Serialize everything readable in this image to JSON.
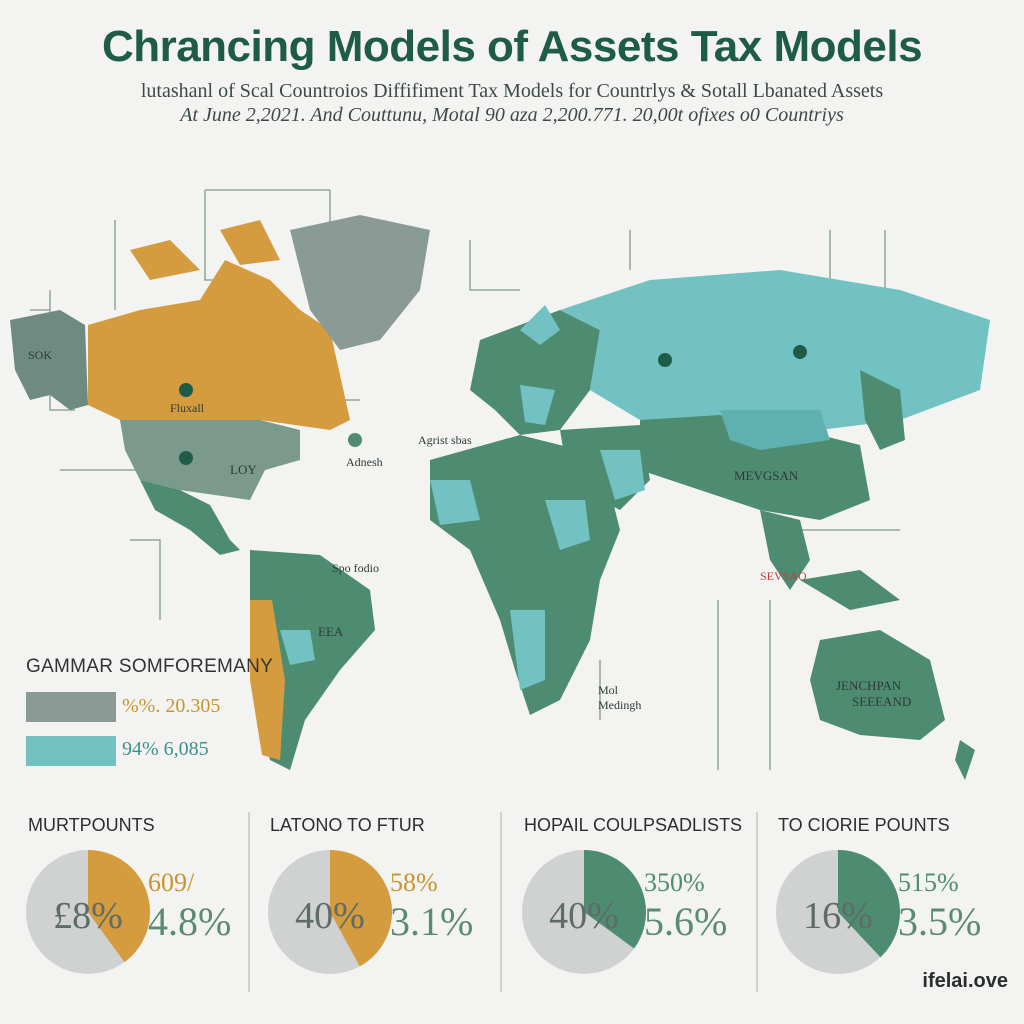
{
  "header": {
    "title": "Chrancing Models of Assets Tax Models",
    "subtitle_1": "lutashanl of Scal Countroios Diffifiment Tax Models for Countrlys & Sotall Lbanated Assets",
    "subtitle_2": "At June 2,2021. And Couttunu,  Motal 90 aza 2,200.771. 20,00t ofixes o0 Countriys"
  },
  "colors": {
    "gold": "#d49c3e",
    "grey": "#8a9b96",
    "teal": "#72c2c3",
    "green": "#4e8c72",
    "dark_green": "#1f5b49"
  },
  "map": {
    "region_labels": {
      "usa": "LOY",
      "canada": "Fluxall",
      "alaska": "SOK",
      "brazil": "EEA",
      "europe": "Agrist sbas",
      "china": "MEVGSAN",
      "se_asia": "SEVSAO",
      "australia_1": "JENCHPAN",
      "australia_2": "SEEEAND",
      "africa_1": "Mol",
      "africa_2": "Medingh",
      "caribbean": "Adnesh",
      "central_america": "Spo fodio"
    },
    "markers": [
      {
        "label": "",
        "icon": "location-pin-icon"
      }
    ]
  },
  "legend": {
    "title": "GAMMAR SOMFOREMANY",
    "items": [
      {
        "value": "%%. 20.305",
        "color": "#8a9b96"
      },
      {
        "value": "94% 6,085",
        "color": "#72c2c3"
      }
    ]
  },
  "panels": [
    {
      "title": "MURTPOUNTS",
      "center": "£8%",
      "val_top": "609/",
      "val_big": "4.8%",
      "share": 0.4,
      "accent": "#d49c3e"
    },
    {
      "title": "LATONO TO FTUR",
      "center": "40%",
      "val_top": "58%",
      "val_big": "3.1%",
      "share": 0.42,
      "accent": "#d49c3e"
    },
    {
      "title": "HOPAIL COULPSADLISTS",
      "center": "40%",
      "val_top": "350%",
      "val_big": "5.6%",
      "share": 0.35,
      "accent": "#4e8c72"
    },
    {
      "title": "TO CIORIE POUNTS",
      "center": "16%",
      "val_top": "515%",
      "val_big": "3.5%",
      "share": 0.38,
      "accent": "#4e8c72"
    }
  ],
  "brand": "ifelai.ove"
}
